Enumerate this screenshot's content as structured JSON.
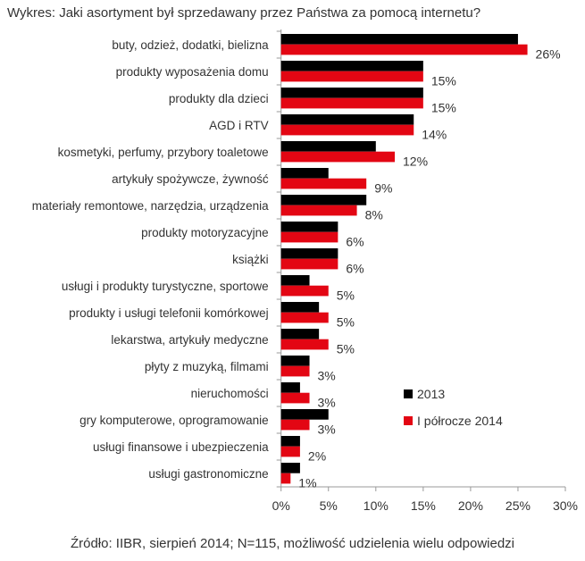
{
  "chart_data": {
    "type": "bar",
    "orientation": "horizontal",
    "title": "Wykres: Jaki asortyment był sprzedawany przez Państwa za pomocą internetu?",
    "source": "Źródło: IIBR, sierpień 2014; N=115, możliwość udzielenia wielu odpowiedzi",
    "categories": [
      "buty, odzież, dodatki, bielizna",
      "produkty wyposażenia domu",
      "produkty dla dzieci",
      "AGD i RTV",
      "kosmetyki, perfumy, przybory toaletowe",
      "artykuły spożywcze, żywność",
      "materiały remontowe, narzędzia, urządzenia",
      "produkty motoryzacyjne",
      "książki",
      "usługi i produkty turystyczne, sportowe",
      "produkty i usługi telefonii komórkowej",
      "lekarstwa, artykuły medyczne",
      "płyty z muzyką, filmami",
      "nieruchomości",
      "gry komputerowe, oprogramowanie",
      "usługi finansowe i ubezpieczenia",
      "usługi gastronomiczne"
    ],
    "series": [
      {
        "name": "2013",
        "color": "#000000",
        "values": [
          25,
          15,
          15,
          14,
          10,
          5,
          9,
          6,
          6,
          3,
          4,
          4,
          3,
          2,
          5,
          2,
          2
        ]
      },
      {
        "name": "I półrocze 2014",
        "color": "#e30613",
        "values": [
          26,
          15,
          15,
          14,
          12,
          9,
          8,
          6,
          6,
          5,
          5,
          5,
          3,
          3,
          3,
          2,
          1
        ],
        "labels": [
          "26%",
          "15%",
          "15%",
          "14%",
          "12%",
          "9%",
          "8%",
          "6%",
          "6%",
          "5%",
          "5%",
          "5%",
          "3%",
          "3%",
          "3%",
          "2%",
          "1%"
        ]
      }
    ],
    "xlim": [
      0,
      30
    ],
    "xticks": [
      "0%",
      "5%",
      "10%",
      "15%",
      "20%",
      "25%",
      "30%"
    ],
    "xlabel": "",
    "ylabel": "",
    "legend_position": "bottom-right-inside",
    "grid": false
  }
}
